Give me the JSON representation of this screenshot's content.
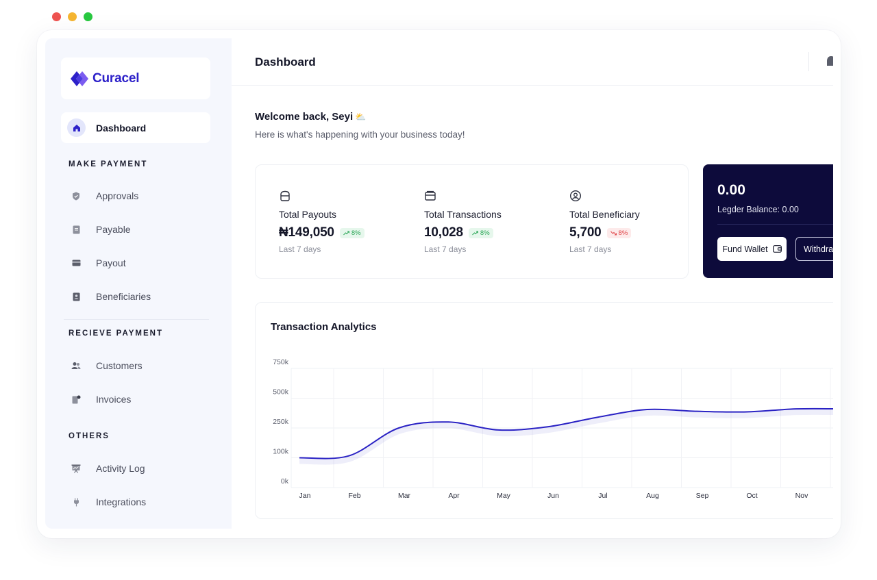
{
  "brand": {
    "name": "Curacel",
    "color": "#2d21c9"
  },
  "sidebar": {
    "active": {
      "label": "Dashboard",
      "icon": "home-icon"
    },
    "sections": [
      {
        "title": "MAKE PAYMENT",
        "items": [
          {
            "label": "Approvals",
            "icon": "shield-check-icon"
          },
          {
            "label": "Payable",
            "icon": "document-icon"
          },
          {
            "label": "Payout",
            "icon": "card-icon"
          },
          {
            "label": "Beneficiaries",
            "icon": "badge-user-icon"
          }
        ]
      },
      {
        "title": "RECIEVE PAYMENT",
        "items": [
          {
            "label": "Customers",
            "icon": "users-icon"
          },
          {
            "label": "Invoices",
            "icon": "invoice-icon"
          }
        ]
      },
      {
        "title": "OTHERS",
        "items": [
          {
            "label": "Activity Log",
            "icon": "presentation-icon"
          },
          {
            "label": "Integrations",
            "icon": "plug-icon"
          }
        ]
      }
    ]
  },
  "header": {
    "title": "Dashboard"
  },
  "welcome": {
    "greeting": "Welcome back, Seyi",
    "emoji": "⛅",
    "subtitle": "Here is what's happening with your business today!"
  },
  "stats": [
    {
      "label": "Total Payouts",
      "value": "₦149,050",
      "change": "8%",
      "trend": "up",
      "period": "Last 7 days",
      "icon": "wallet-bag-icon"
    },
    {
      "label": "Total Transactions",
      "value": "10,028",
      "change": "8%",
      "trend": "up",
      "period": "Last 7 days",
      "icon": "cards-icon"
    },
    {
      "label": "Total Beneficiary",
      "value": "5,700",
      "change": "8%",
      "trend": "down",
      "period": "Last 7 days",
      "icon": "user-circle-icon"
    }
  ],
  "wallet": {
    "balance": "0.00",
    "ledger": "Legder Balance: 0.00",
    "fund_label": "Fund Wallet",
    "withdraw_label": "Withdraw",
    "bg_color": "#0d0b3b"
  },
  "analytics": {
    "title": "Transaction Analytics"
  },
  "chart_data": {
    "type": "line",
    "title": "Transaction Analytics",
    "categories": [
      "Jan",
      "Feb",
      "Mar",
      "Apr",
      "May",
      "Jun",
      "Jul",
      "Aug",
      "Sep",
      "Oct",
      "Nov"
    ],
    "y_ticks": [
      "750k",
      "500k",
      "250k",
      "100k",
      "0k"
    ],
    "series": [
      {
        "color": "#2a22c4",
        "values": [
          100,
          110,
          250,
          300,
          240,
          260,
          340,
          405,
          390,
          385,
          410
        ]
      }
    ],
    "grid": true
  }
}
